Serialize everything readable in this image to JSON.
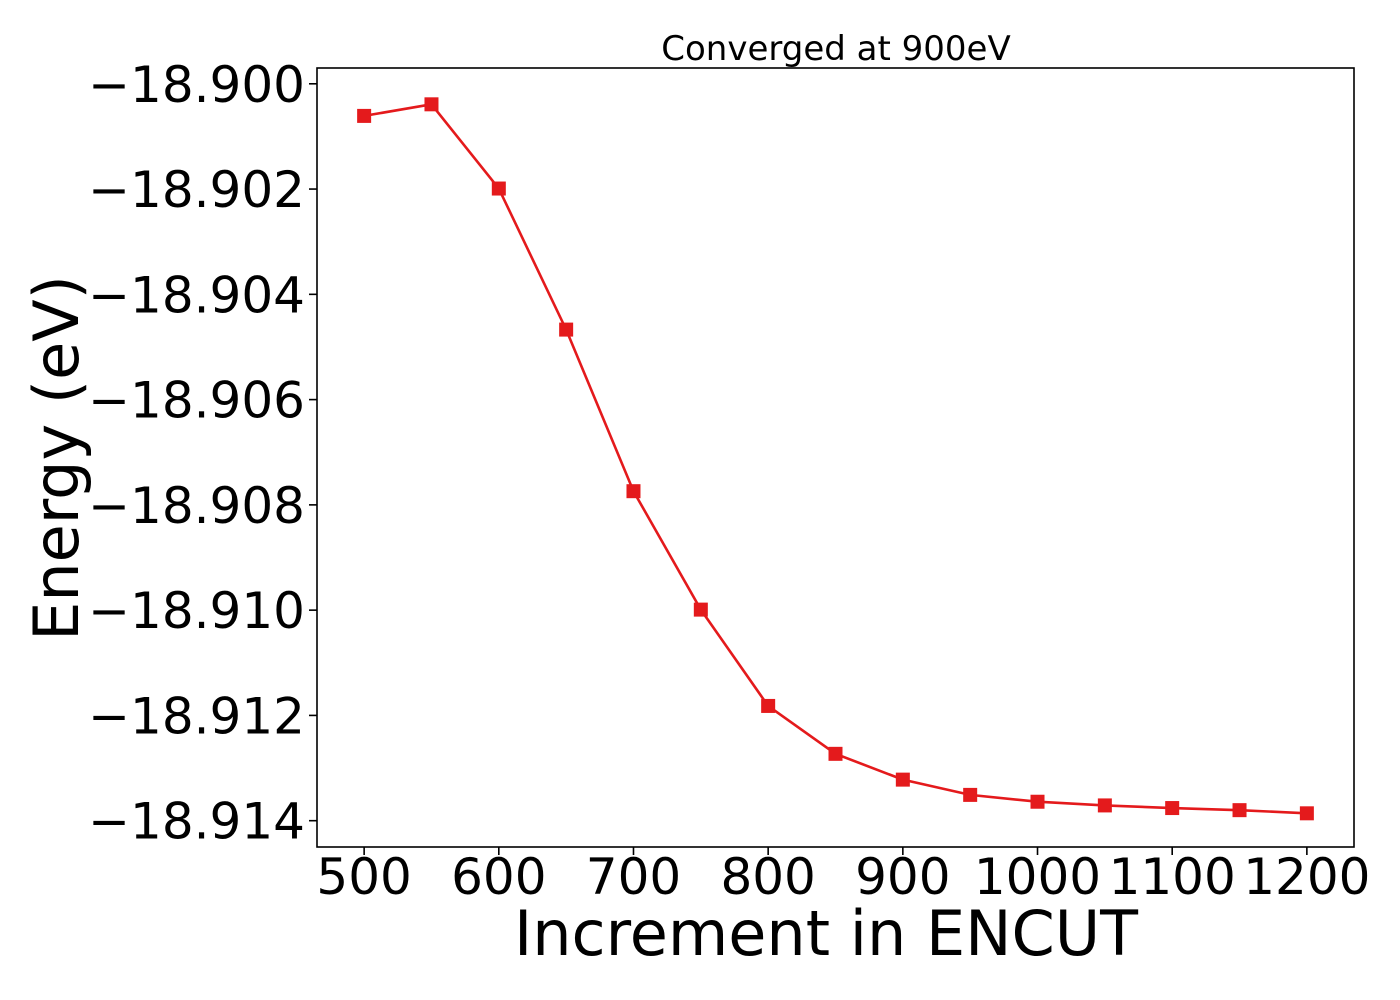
{
  "chart_data": {
    "type": "line",
    "title": "Converged at 900eV",
    "xlabel": "Increment in ENCUT",
    "ylabel": "Energy (eV)",
    "xlim": [
      465,
      1235
    ],
    "ylim": [
      -18.9145,
      -18.8997
    ],
    "x_ticks": [
      500,
      600,
      700,
      800,
      900,
      1000,
      1100,
      1200
    ],
    "x_tick_labels": [
      "500",
      "600",
      "700",
      "800",
      "900",
      "1000",
      "1100",
      "1200"
    ],
    "y_ticks": [
      -18.9,
      -18.902,
      -18.904,
      -18.906,
      -18.908,
      -18.91,
      -18.912,
      -18.914
    ],
    "y_tick_labels": [
      "−18.900",
      "−18.902",
      "−18.904",
      "−18.906",
      "−18.908",
      "−18.910",
      "−18.912",
      "−18.914"
    ],
    "grid": false,
    "legend": "none",
    "series": [
      {
        "color": "#e41a1c",
        "marker": "square",
        "x": [
          500,
          550,
          600,
          650,
          700,
          750,
          800,
          850,
          900,
          950,
          1000,
          1050,
          1100,
          1150,
          1200
        ],
        "y": [
          -18.90061,
          -18.90039,
          -18.90199,
          -18.90467,
          -18.90774,
          -18.90999,
          -18.91182,
          -18.91273,
          -18.91322,
          -18.91351,
          -18.91364,
          -18.91371,
          -18.91376,
          -18.9138,
          -18.91386
        ]
      }
    ]
  }
}
